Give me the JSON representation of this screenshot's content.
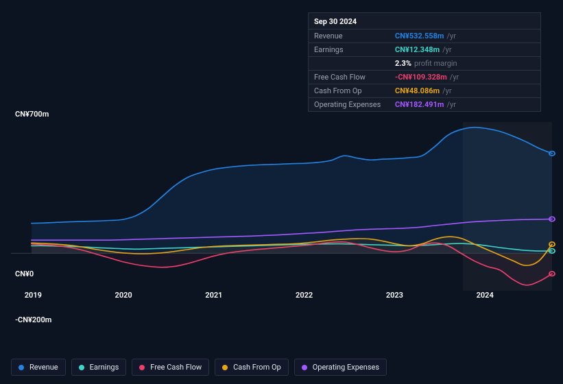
{
  "chart": {
    "type": "line",
    "background_color": "#0d1421",
    "plot_background_alt": "rgba(255,255,255,0.02)",
    "grid_color": "#2a3340",
    "cursor_fill": "rgba(255,255,255,0.04)",
    "y_axis": {
      "max_label": "CN¥700m",
      "zero_label": "CN¥0",
      "min_label": "-CN¥200m",
      "ymin": -200,
      "yzero": 0,
      "ymax": 700
    },
    "x_axis": {
      "labels": [
        "2019",
        "2020",
        "2021",
        "2022",
        "2023",
        "2024"
      ],
      "positions_pct": [
        4.1,
        20.8,
        37.5,
        54.2,
        70.9,
        87.6
      ]
    },
    "series": [
      {
        "id": "revenue",
        "label": "Revenue",
        "color": "#2383e2",
        "fill": "rgba(35,131,226,0.12)",
        "line_width": 2,
        "data": [
          160,
          162,
          165,
          168,
          170,
          172,
          175,
          180,
          200,
          240,
          300,
          360,
          405,
          430,
          448,
          458,
          465,
          470,
          473,
          475,
          478,
          480,
          485,
          495,
          520,
          508,
          498,
          502,
          505,
          510,
          520,
          570,
          630,
          660,
          672,
          665,
          650,
          625,
          595,
          560,
          532.558
        ],
        "end_dot": true
      },
      {
        "id": "earnings",
        "label": "Earnings",
        "color": "#3ed5c9",
        "fill": "none",
        "line_width": 2,
        "data": [
          40,
          40,
          38,
          36,
          34,
          30,
          27,
          24,
          22,
          24,
          26,
          28,
          30,
          32,
          34,
          36,
          38,
          40,
          42,
          44,
          46,
          48,
          49,
          50,
          50,
          48,
          46,
          44,
          42,
          40,
          42,
          46,
          50,
          52,
          48,
          40,
          30,
          22,
          15,
          12,
          12.348
        ],
        "end_dot": true
      },
      {
        "id": "fcf",
        "label": "Free Cash Flow",
        "color": "#eb3f6d",
        "fill": "rgba(235,63,109,0.05)",
        "line_width": 2,
        "data": [
          50,
          45,
          40,
          30,
          15,
          -5,
          -25,
          -45,
          -60,
          -70,
          -75,
          -70,
          -55,
          -35,
          -15,
          0,
          10,
          18,
          24,
          30,
          36,
          42,
          50,
          58,
          60,
          48,
          30,
          15,
          8,
          18,
          45,
          55,
          40,
          0,
          -40,
          -70,
          -90,
          -140,
          -170,
          -150,
          -109.328
        ],
        "end_dot": true
      },
      {
        "id": "cashop",
        "label": "Cash From Op",
        "color": "#e6a417",
        "fill": "rgba(230,164,23,0.06)",
        "line_width": 2,
        "data": [
          55,
          52,
          48,
          42,
          32,
          20,
          10,
          2,
          -2,
          -2,
          2,
          10,
          20,
          30,
          36,
          40,
          42,
          44,
          46,
          48,
          50,
          55,
          62,
          70,
          75,
          78,
          76,
          65,
          50,
          40,
          50,
          75,
          88,
          80,
          50,
          20,
          -10,
          -40,
          -65,
          -40,
          48.086
        ],
        "end_dot": true
      },
      {
        "id": "opex",
        "label": "Operating Expenses",
        "color": "#a259ff",
        "fill": "none",
        "line_width": 2,
        "data": [
          70,
          70,
          70,
          70,
          70,
          70,
          70,
          72,
          74,
          76,
          78,
          80,
          82,
          84,
          86,
          88,
          90,
          92,
          95,
          98,
          102,
          106,
          110,
          115,
          120,
          125,
          128,
          130,
          132,
          135,
          140,
          148,
          155,
          162,
          168,
          172,
          175,
          178,
          180,
          181,
          182.491
        ],
        "end_dot": true
      }
    ]
  },
  "tooltip": {
    "date": "Sep 30 2024",
    "rows": [
      {
        "label": "Revenue",
        "value": "CN¥532.558m",
        "suffix": "/yr",
        "color": "#2383e2"
      },
      {
        "label": "Earnings",
        "value": "CN¥12.348m",
        "suffix": "/yr",
        "color": "#3ed5c9"
      },
      {
        "label": "",
        "value": "2.3%",
        "suffix": "profit margin",
        "color": "#ffffff"
      },
      {
        "label": "Free Cash Flow",
        "value": "-CN¥109.328m",
        "suffix": "/yr",
        "color": "#eb3f6d"
      },
      {
        "label": "Cash From Op",
        "value": "CN¥48.086m",
        "suffix": "/yr",
        "color": "#e6a417"
      },
      {
        "label": "Operating Expenses",
        "value": "CN¥182.491m",
        "suffix": "/yr",
        "color": "#a259ff"
      }
    ]
  },
  "legend": {
    "border_color": "#2a3340",
    "bg_color": "#12182a",
    "items": [
      {
        "label": "Revenue",
        "color": "#2383e2",
        "id": "revenue"
      },
      {
        "label": "Earnings",
        "color": "#3ed5c9",
        "id": "earnings"
      },
      {
        "label": "Free Cash Flow",
        "color": "#eb3f6d",
        "id": "fcf"
      },
      {
        "label": "Cash From Op",
        "color": "#e6a417",
        "id": "cashop"
      },
      {
        "label": "Operating Expenses",
        "color": "#a259ff",
        "id": "opex"
      }
    ]
  }
}
